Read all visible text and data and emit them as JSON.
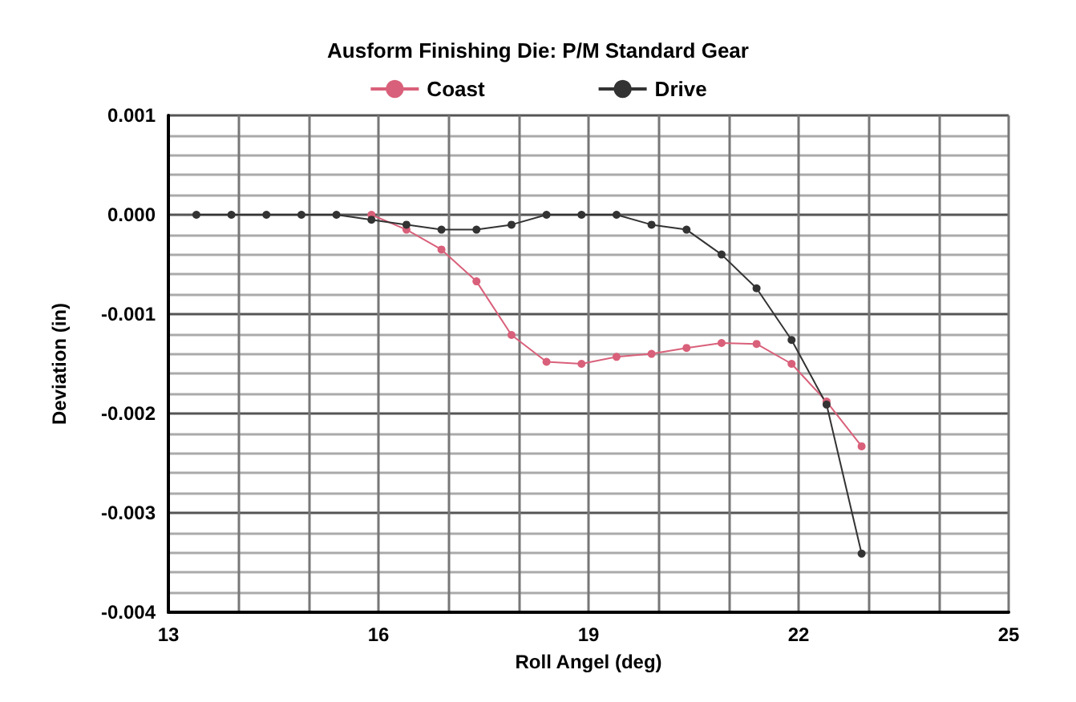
{
  "chart_data": {
    "type": "line",
    "title": "Ausform Finishing Die: P/M Standard Gear",
    "xlabel": "Roll Angel (deg)",
    "ylabel": "Deviation (in)",
    "x": [
      13.4,
      13.9,
      14.4,
      14.9,
      15.4,
      15.9,
      16.4,
      16.9,
      17.4,
      17.9,
      18.4,
      18.9,
      19.4,
      19.9,
      20.4,
      20.9,
      21.4,
      21.9,
      22.4,
      22.9
    ],
    "series": [
      {
        "name": "Coast",
        "color": "#d9607a",
        "values": [
          null,
          null,
          null,
          null,
          null,
          0,
          -0.00015,
          -0.00035,
          -0.00067,
          -0.00121,
          -0.00148,
          -0.0015,
          -0.00143,
          -0.0014,
          -0.00134,
          -0.00129,
          -0.0013,
          -0.0015,
          -0.00188,
          -0.00233
        ]
      },
      {
        "name": "Drive",
        "color": "#333333",
        "values": [
          0,
          0,
          0,
          0,
          0,
          -5e-05,
          -0.0001,
          -0.00015,
          -0.00015,
          -0.0001,
          0,
          0,
          0,
          -0.0001,
          -0.00015,
          -0.0004,
          -0.00074,
          -0.00126,
          -0.00191,
          -0.00341
        ]
      }
    ],
    "xlim": [
      13,
      25
    ],
    "xticks": [
      13,
      {
        "value": 14,
        "label": null
      },
      {
        "value": 15,
        "label": null
      },
      16,
      {
        "value": 17,
        "label": null
      },
      {
        "value": 18,
        "label": null
      },
      19,
      {
        "value": 20,
        "label": null
      },
      {
        "value": 21,
        "label": null
      },
      22,
      {
        "value": 23,
        "label": null
      },
      {
        "value": 24,
        "label": null
      },
      25
    ],
    "ylim": [
      -0.004,
      0.001
    ],
    "yticks": [
      {
        "value": -0.004,
        "label": "-0.004"
      },
      {
        "value": -0.003,
        "label": "-0.003"
      },
      {
        "value": -0.002,
        "label": "-0.002"
      },
      {
        "value": -0.001,
        "label": "-0.001"
      },
      {
        "value": 0,
        "label": "0.000"
      },
      {
        "value": 0.001,
        "label": "0.001"
      }
    ],
    "grid": true,
    "legend": "top",
    "marker": "circle",
    "line_style": "solid"
  }
}
